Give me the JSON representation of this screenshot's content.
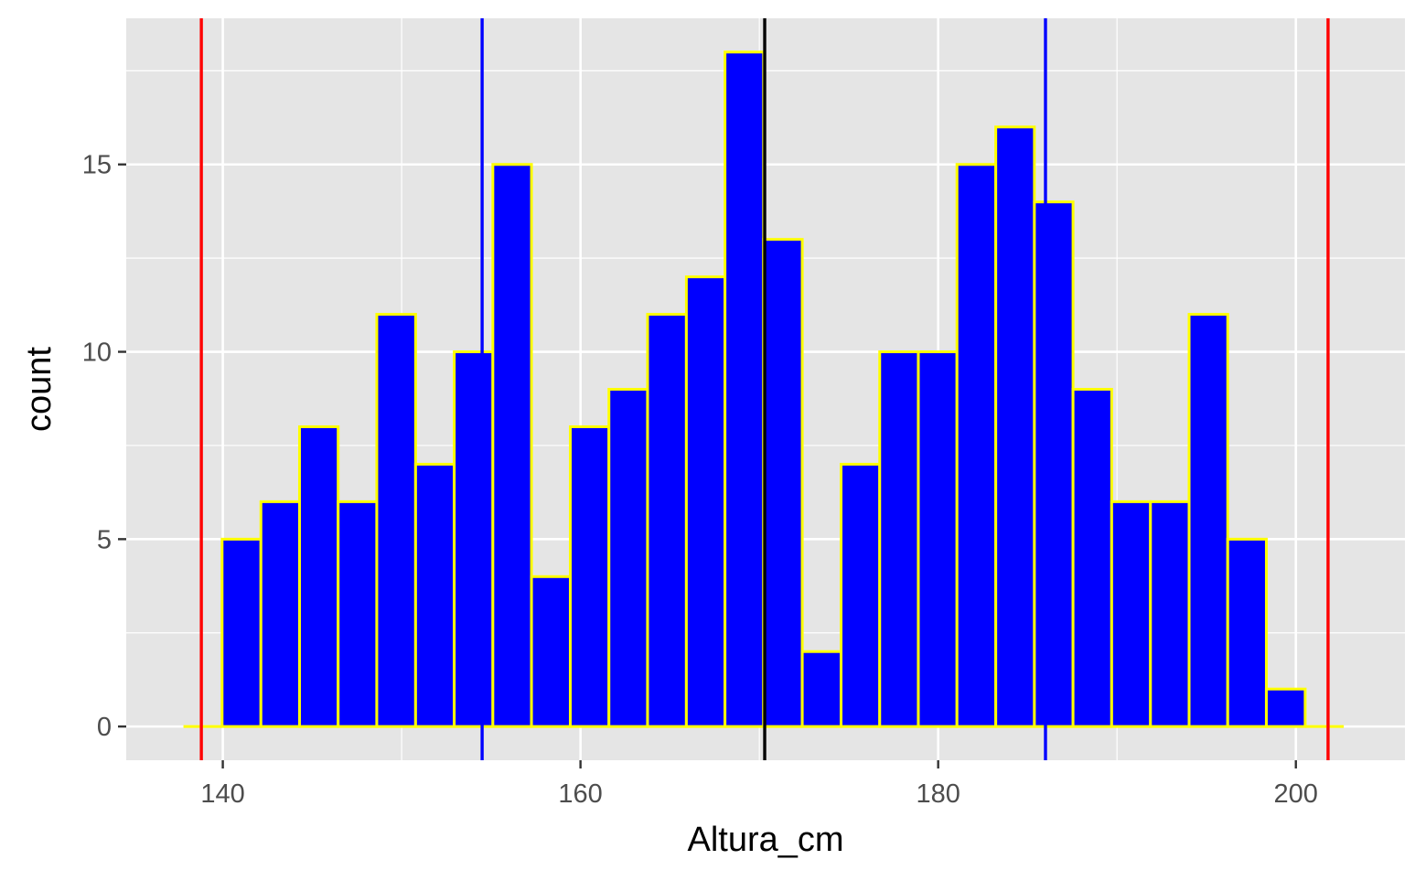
{
  "chart_data": {
    "type": "bar",
    "subtype": "histogram",
    "xlabel": "Altura_cm",
    "ylabel": "count",
    "xlim": [
      134.6,
      206.1
    ],
    "ylim": [
      -0.9,
      18.9
    ],
    "x_ticks": [
      140,
      160,
      180,
      200
    ],
    "y_ticks": [
      0,
      5,
      10,
      15
    ],
    "minor_x": [
      150,
      170,
      190
    ],
    "minor_y": [
      2.5,
      7.5,
      12.5,
      17.5
    ],
    "bin_edges": [
      137.8,
      139.96,
      142.13,
      144.29,
      146.45,
      148.61,
      150.78,
      152.94,
      155.1,
      157.26,
      159.43,
      161.59,
      163.75,
      165.92,
      168.08,
      170.24,
      172.4,
      174.57,
      176.73,
      178.89,
      181.05,
      183.22,
      185.38,
      187.54,
      189.7,
      191.87,
      194.03,
      196.19,
      198.35,
      200.52,
      202.68
    ],
    "counts": [
      0,
      5,
      6,
      8,
      6,
      11,
      7,
      10,
      15,
      4,
      8,
      9,
      11,
      12,
      18,
      13,
      2,
      7,
      10,
      10,
      15,
      16,
      14,
      9,
      6,
      6,
      11,
      5,
      1,
      0
    ],
    "vlines": [
      {
        "x": 138.8,
        "color": "#ff0000"
      },
      {
        "x": 154.5,
        "color": "#0000ff"
      },
      {
        "x": 170.3,
        "color": "#000000"
      },
      {
        "x": 186.0,
        "color": "#0000ff"
      },
      {
        "x": 201.8,
        "color": "#ff0000"
      }
    ],
    "colors": {
      "bar_fill": "#0000ff",
      "bar_outline": "#ffff00",
      "panel_background": "#e5e5e5",
      "grid": "#ffffff"
    },
    "grid": true,
    "legend": "none"
  }
}
